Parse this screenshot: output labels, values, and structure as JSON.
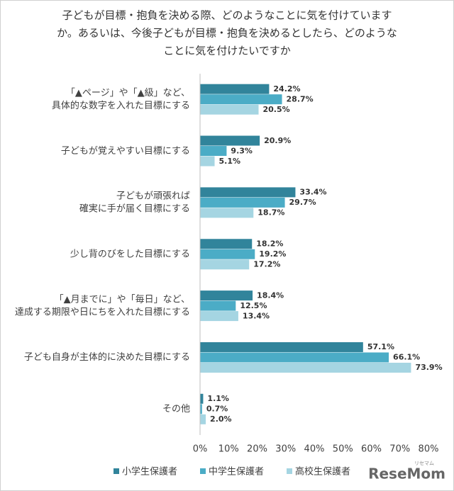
{
  "chart_data": {
    "type": "bar",
    "orientation": "horizontal",
    "title": [
      "子どもが目標・抱負を決める際、どのようなことに気を付けていますか。あるいは、今後子どもが目標・抱負を決めるとしたら、どのようなことに気を付けたいですか"
    ],
    "title_lines": [
      "子どもが目標・抱負を決める際、どのようなことに気を付けています",
      "か。あるいは、今後子どもが目標・抱負を決めるとしたら、どのような",
      "ことに気を付けたいですか"
    ],
    "categories": [
      [
        "「▲ページ」や「▲級」など、",
        "具体的な数字を入れた目標にする"
      ],
      [
        "子どもが覚えやすい目標にする"
      ],
      [
        "子どもが頑張れば",
        "確実に手が届く目標にする"
      ],
      [
        "少し背のびをした目標にする"
      ],
      [
        "「▲月までに」や「毎日」など、",
        "達成する期限や日にちを入れた目標にする"
      ],
      [
        "子ども自身が主体的に決めた目標にする"
      ],
      [
        "その他"
      ]
    ],
    "series": [
      {
        "name": "小学生保護者",
        "color": "#31849b",
        "values": [
          24.2,
          20.9,
          33.4,
          18.2,
          18.4,
          57.1,
          1.1
        ],
        "value_labels": [
          "24.2%",
          "20.9%",
          "33.4%",
          "18.2%",
          "18.4%",
          "57.1%",
          "1.1%"
        ]
      },
      {
        "name": "中学生保護者",
        "color": "#4bacc6",
        "values": [
          28.7,
          9.3,
          29.7,
          19.2,
          12.5,
          66.1,
          0.7
        ],
        "value_labels": [
          "28.7%",
          "9.3%",
          "29.7%",
          "19.2%",
          "12.5%",
          "66.1%",
          "0.7%"
        ]
      },
      {
        "name": "高校生保護者",
        "color": "#a5d5e2",
        "values": [
          20.5,
          5.1,
          18.7,
          17.2,
          13.4,
          73.9,
          2.0
        ],
        "value_labels": [
          "20.5%",
          "5.1%",
          "18.7%",
          "17.2%",
          "13.4%",
          "73.9%",
          "2.0%"
        ]
      }
    ],
    "xlim": [
      0,
      80
    ],
    "xticks": [
      {
        "value": 0,
        "label": "0%"
      },
      {
        "value": 10,
        "label": "10%"
      },
      {
        "value": 20,
        "label": "20%"
      },
      {
        "value": 30,
        "label": "30%"
      },
      {
        "value": 40,
        "label": "40%"
      },
      {
        "value": 50,
        "label": "50%"
      },
      {
        "value": 60,
        "label": "60%"
      },
      {
        "value": 70,
        "label": "70%"
      },
      {
        "value": 80,
        "label": "80%"
      }
    ],
    "grid": false,
    "legend": "bottom",
    "logo": "ReseMom",
    "logo_sub": "リセマム"
  }
}
